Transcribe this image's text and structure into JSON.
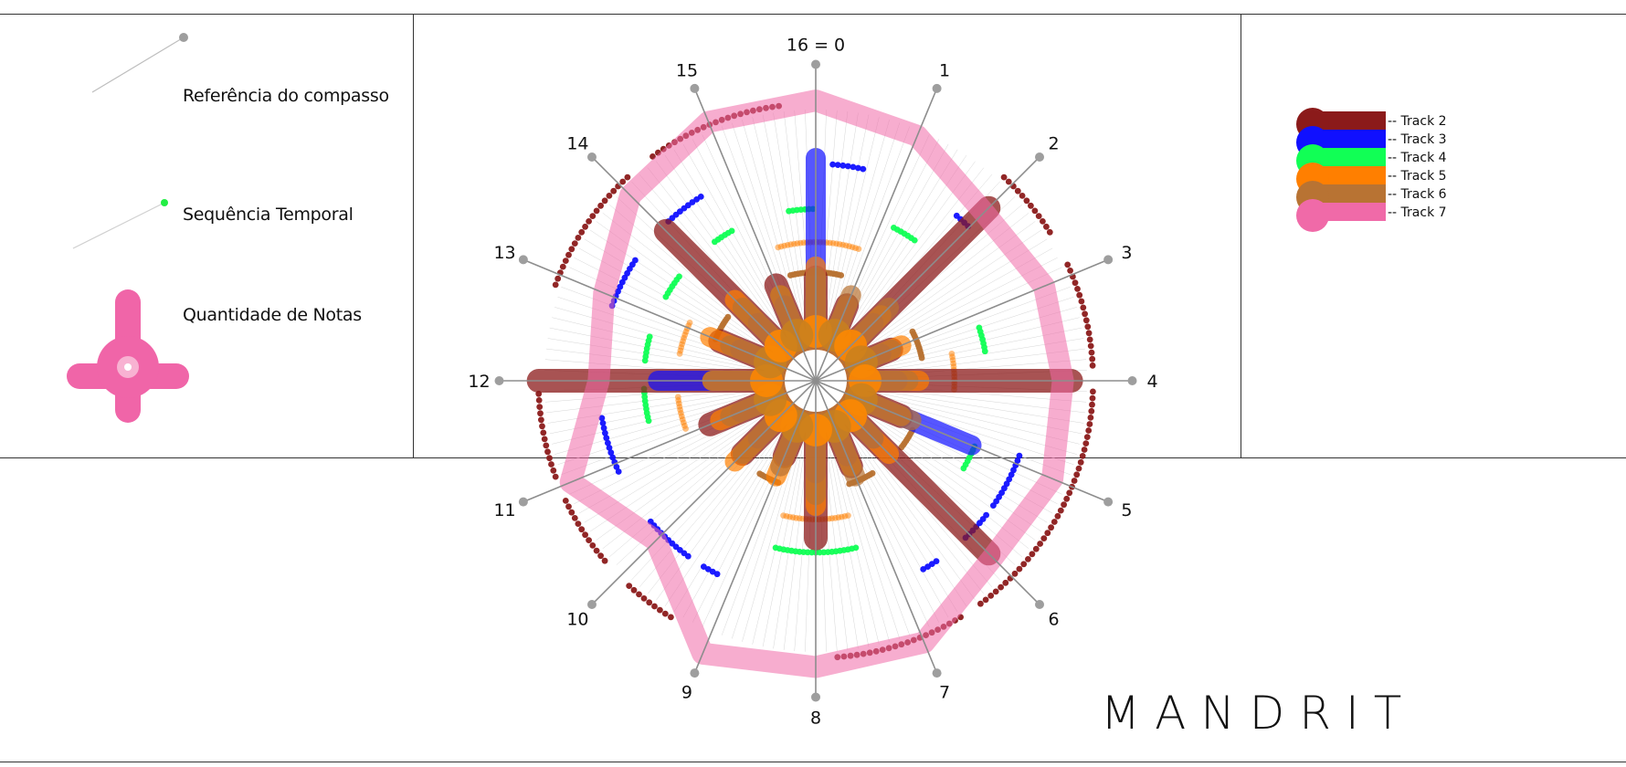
{
  "legend": {
    "measure_reference": "Referência do compasso",
    "time_sequence": "Sequência Temporal",
    "note_count": "Quantidade de Notas",
    "colors": {
      "line": "#bdbdbd",
      "dot": "#9e9e9e",
      "green": "#22ee44",
      "pink": "#f065a8"
    }
  },
  "tracks": [
    {
      "label": "-- Track 2",
      "color": "#8b1a1a"
    },
    {
      "label": "-- Track 3",
      "color": "#1010ff"
    },
    {
      "label": "-- Track 4",
      "color": "#11ff55"
    },
    {
      "label": "-- Track 5",
      "color": "#ff7f00"
    },
    {
      "label": "-- Track 6",
      "color": "#b87333"
    },
    {
      "label": "-- Track 7",
      "color": "#f06aa8"
    }
  ],
  "brand": "MANDRIT",
  "chart_data": {
    "type": "radial",
    "angular_labels": [
      "16 = 0",
      "1",
      "2",
      "3",
      "4",
      "5",
      "6",
      "7",
      "8",
      "9",
      "10",
      "11",
      "12",
      "13",
      "14",
      "15"
    ],
    "series": [
      {
        "name": "Track 2",
        "color": "#8b1a1a",
        "ring": 0.92,
        "arcs": [
          [
            14.4,
            15.7
          ],
          [
            1.9,
            2.6
          ],
          [
            2.9,
            3.9
          ],
          [
            4.1,
            6.4
          ],
          [
            6.6,
            7.8
          ],
          [
            9.4,
            9.9
          ],
          [
            10.2,
            10.9
          ],
          [
            11.1,
            11.9
          ],
          [
            12.9,
            14.1
          ]
        ],
        "bars": [
          0.3,
          0.2,
          0.95,
          0.2,
          1.0,
          0.25,
          0.95,
          0.25,
          0.55,
          0.2,
          0.3,
          0.35,
          1.1,
          0.3,
          0.8,
          0.3
        ]
      },
      {
        "name": "Track 3",
        "color": "#1010ff",
        "ring": 0.72,
        "arcs": [
          [
            0.2,
            0.6
          ],
          [
            1.8,
            2.0
          ],
          [
            4.9,
            5.6
          ],
          [
            5.7,
            6.1
          ],
          [
            6.5,
            6.7
          ],
          [
            9.2,
            9.4
          ],
          [
            9.6,
            10.2
          ],
          [
            10.9,
            11.6
          ],
          [
            12.9,
            13.5
          ],
          [
            14.1,
            14.6
          ]
        ],
        "bars": [
          0.85,
          0.2,
          0.2,
          0.15,
          0.2,
          0.6,
          0.2,
          0.2,
          0.25,
          0.2,
          0.2,
          0.2,
          0.55,
          0.2,
          0.2,
          0.2
        ]
      },
      {
        "name": "Track 4",
        "color": "#11ff55",
        "ring": 0.57,
        "arcs": [
          [
            15.6,
            16.0
          ],
          [
            1.2,
            1.6
          ],
          [
            3.2,
            3.6
          ],
          [
            5.0,
            5.4
          ],
          [
            7.4,
            8.6
          ],
          [
            11.4,
            11.9
          ],
          [
            12.3,
            12.7
          ],
          [
            13.3,
            13.7
          ],
          [
            14.4,
            14.7
          ]
        ],
        "bars": []
      },
      {
        "name": "Track 5",
        "color": "#ff7f00",
        "ring": 0.46,
        "arcs": [
          [
            15.3,
            0.8
          ],
          [
            3.5,
            4.2
          ],
          [
            7.4,
            8.6
          ],
          [
            11.1,
            11.7
          ],
          [
            12.5,
            13.1
          ]
        ],
        "bars": [
          0.35,
          0.2,
          0.25,
          0.25,
          0.3,
          0.25,
          0.3,
          0.25,
          0.4,
          0.3,
          0.35,
          0.3,
          0.3,
          0.35,
          0.35,
          0.25
        ]
      },
      {
        "name": "Track 6",
        "color": "#b87333",
        "ring": 0.36,
        "arcs": [
          [
            15.4,
            0.6
          ],
          [
            2.8,
            3.5
          ],
          [
            5.2,
            5.7
          ],
          [
            6.6,
            7.2
          ],
          [
            8.9,
            9.4
          ],
          [
            13.0,
            13.6
          ]
        ],
        "bars": [
          0.3,
          0.25,
          0.3,
          0.2,
          0.25,
          0.3,
          0.2,
          0.3,
          0.35,
          0.25,
          0.3,
          0.25,
          0.3,
          0.25,
          0.3,
          0.25
        ]
      },
      {
        "name": "Track 7",
        "color": "#f06aa8",
        "ring": 0,
        "arcs": [],
        "polygon": [
          0.93,
          0.88,
          0.79,
          0.82,
          0.82,
          0.85,
          0.83,
          0.94,
          0.95,
          0.98,
          0.75,
          0.88,
          0.72,
          0.76,
          0.87,
          0.93,
          0.93
        ]
      }
    ]
  }
}
